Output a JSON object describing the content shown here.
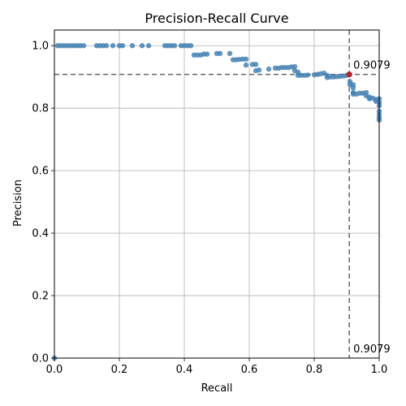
{
  "chart_data": {
    "type": "scatter",
    "title": "Precision-Recall Curve",
    "xlabel": "Recall",
    "ylabel": "Precision",
    "xlim": [
      0.0,
      1.0
    ],
    "ylim": [
      0.0,
      1.05
    ],
    "grid": true,
    "xticks": [
      0.0,
      0.2,
      0.4,
      0.6,
      0.8,
      1.0
    ],
    "xtick_labels": [
      "0.0",
      "0.2",
      "0.4",
      "0.6",
      "0.8",
      "1.0"
    ],
    "yticks": [
      0.0,
      0.2,
      0.4,
      0.6,
      0.8,
      1.0
    ],
    "ytick_labels": [
      "0.0",
      "0.2",
      "0.4",
      "0.6",
      "0.8",
      "1.0"
    ],
    "point_color": "#4682b4",
    "highlight_color": "#b22222",
    "reference_line_color": "#666666",
    "series": [
      {
        "points": [
          [
            0.0,
            0.0
          ],
          [
            0.01,
            1.0
          ],
          [
            0.02,
            1.0
          ],
          [
            0.03,
            1.0
          ],
          [
            0.04,
            1.0
          ],
          [
            0.05,
            1.0
          ],
          [
            0.06,
            1.0
          ],
          [
            0.07,
            1.0
          ],
          [
            0.08,
            1.0
          ],
          [
            0.09,
            1.0
          ],
          [
            0.13,
            1.0
          ],
          [
            0.14,
            1.0
          ],
          [
            0.15,
            1.0
          ],
          [
            0.16,
            1.0
          ],
          [
            0.18,
            1.0
          ],
          [
            0.2,
            1.0
          ],
          [
            0.21,
            1.0
          ],
          [
            0.24,
            1.0
          ],
          [
            0.27,
            1.0
          ],
          [
            0.29,
            1.0
          ],
          [
            0.34,
            1.0
          ],
          [
            0.35,
            1.0
          ],
          [
            0.36,
            1.0
          ],
          [
            0.37,
            1.0
          ],
          [
            0.39,
            1.0
          ],
          [
            0.4,
            1.0
          ],
          [
            0.41,
            1.0
          ],
          [
            0.42,
            1.0
          ],
          [
            0.43,
            0.97
          ],
          [
            0.44,
            0.97
          ],
          [
            0.45,
            0.97
          ],
          [
            0.46,
            0.973
          ],
          [
            0.47,
            0.973
          ],
          [
            0.5,
            0.975
          ],
          [
            0.51,
            0.975
          ],
          [
            0.54,
            0.975
          ],
          [
            0.55,
            0.955
          ],
          [
            0.56,
            0.955
          ],
          [
            0.57,
            0.956
          ],
          [
            0.58,
            0.957
          ],
          [
            0.59,
            0.957
          ],
          [
            0.59,
            0.938
          ],
          [
            0.61,
            0.94
          ],
          [
            0.62,
            0.94
          ],
          [
            0.62,
            0.92
          ],
          [
            0.63,
            0.922
          ],
          [
            0.66,
            0.925
          ],
          [
            0.68,
            0.928
          ],
          [
            0.69,
            0.928
          ],
          [
            0.7,
            0.93
          ],
          [
            0.71,
            0.93
          ],
          [
            0.72,
            0.93
          ],
          [
            0.73,
            0.932
          ],
          [
            0.74,
            0.933
          ],
          [
            0.74,
            0.92
          ],
          [
            0.75,
            0.915
          ],
          [
            0.75,
            0.905
          ],
          [
            0.76,
            0.905
          ],
          [
            0.77,
            0.905
          ],
          [
            0.78,
            0.906
          ],
          [
            0.8,
            0.907
          ],
          [
            0.81,
            0.908
          ],
          [
            0.82,
            0.91
          ],
          [
            0.83,
            0.912
          ],
          [
            0.84,
            0.905
          ],
          [
            0.84,
            0.898
          ],
          [
            0.85,
            0.9
          ],
          [
            0.86,
            0.9
          ],
          [
            0.87,
            0.901
          ],
          [
            0.88,
            0.902
          ],
          [
            0.89,
            0.903
          ],
          [
            0.9,
            0.905
          ],
          [
            0.91,
            0.885
          ],
          [
            0.91,
            0.875
          ],
          [
            0.92,
            0.875
          ],
          [
            0.92,
            0.865
          ],
          [
            0.92,
            0.85
          ],
          [
            0.92,
            0.845
          ],
          [
            0.93,
            0.845
          ],
          [
            0.94,
            0.848
          ],
          [
            0.95,
            0.848
          ],
          [
            0.96,
            0.85
          ],
          [
            0.96,
            0.84
          ],
          [
            0.97,
            0.835
          ],
          [
            0.97,
            0.83
          ],
          [
            0.98,
            0.832
          ],
          [
            0.99,
            0.828
          ],
          [
            0.99,
            0.822
          ],
          [
            1.0,
            0.83
          ],
          [
            1.0,
            0.818
          ],
          [
            1.0,
            0.808
          ],
          [
            1.0,
            0.79
          ],
          [
            1.0,
            0.78
          ],
          [
            1.0,
            0.77
          ],
          [
            1.0,
            0.762
          ]
        ]
      }
    ],
    "highlight_point": [
      0.9079,
      0.9079
    ],
    "reference_lines": {
      "horizontal": 0.9079,
      "vertical": 0.9079,
      "style": "dashed"
    },
    "annotations": [
      {
        "text": "0.9079",
        "x": 0.9079,
        "y": 0.9079
      },
      {
        "text": "0.9079",
        "x": 0.9079,
        "y": 0.0
      }
    ]
  }
}
